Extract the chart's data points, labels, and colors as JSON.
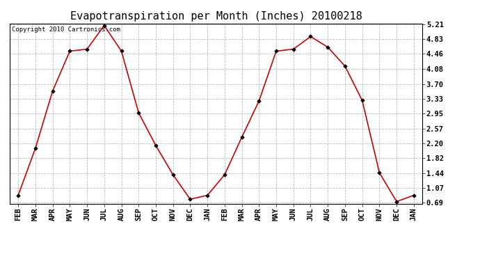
{
  "title": "Evapotranspiration per Month (Inches) 20100218",
  "x_labels": [
    "FEB",
    "MAR",
    "APR",
    "MAY",
    "JUN",
    "JUL",
    "AUG",
    "SEP",
    "OCT",
    "NOV",
    "DEC",
    "JAN",
    "FEB",
    "MAR",
    "APR",
    "MAY",
    "JUN",
    "JUL",
    "AUG",
    "SEP",
    "OCT",
    "NOV",
    "DEC",
    "JAN"
  ],
  "y_values": [
    0.88,
    2.07,
    3.52,
    4.53,
    4.58,
    5.18,
    4.53,
    2.97,
    2.14,
    1.4,
    0.78,
    0.88,
    1.4,
    2.35,
    3.27,
    4.53,
    4.58,
    4.9,
    4.63,
    4.15,
    3.28,
    1.45,
    0.72,
    0.88
  ],
  "line_color": "#cc0000",
  "marker_color": "#000000",
  "background_color": "#ffffff",
  "grid_color": "#bbbbbb",
  "y_ticks": [
    0.69,
    1.07,
    1.44,
    1.82,
    2.2,
    2.57,
    2.95,
    3.33,
    3.7,
    4.08,
    4.46,
    4.83,
    5.21
  ],
  "copyright_text": "Copyright 2010 Cartronics.com",
  "title_fontsize": 11,
  "tick_fontsize": 7.5,
  "copyright_fontsize": 6.5
}
